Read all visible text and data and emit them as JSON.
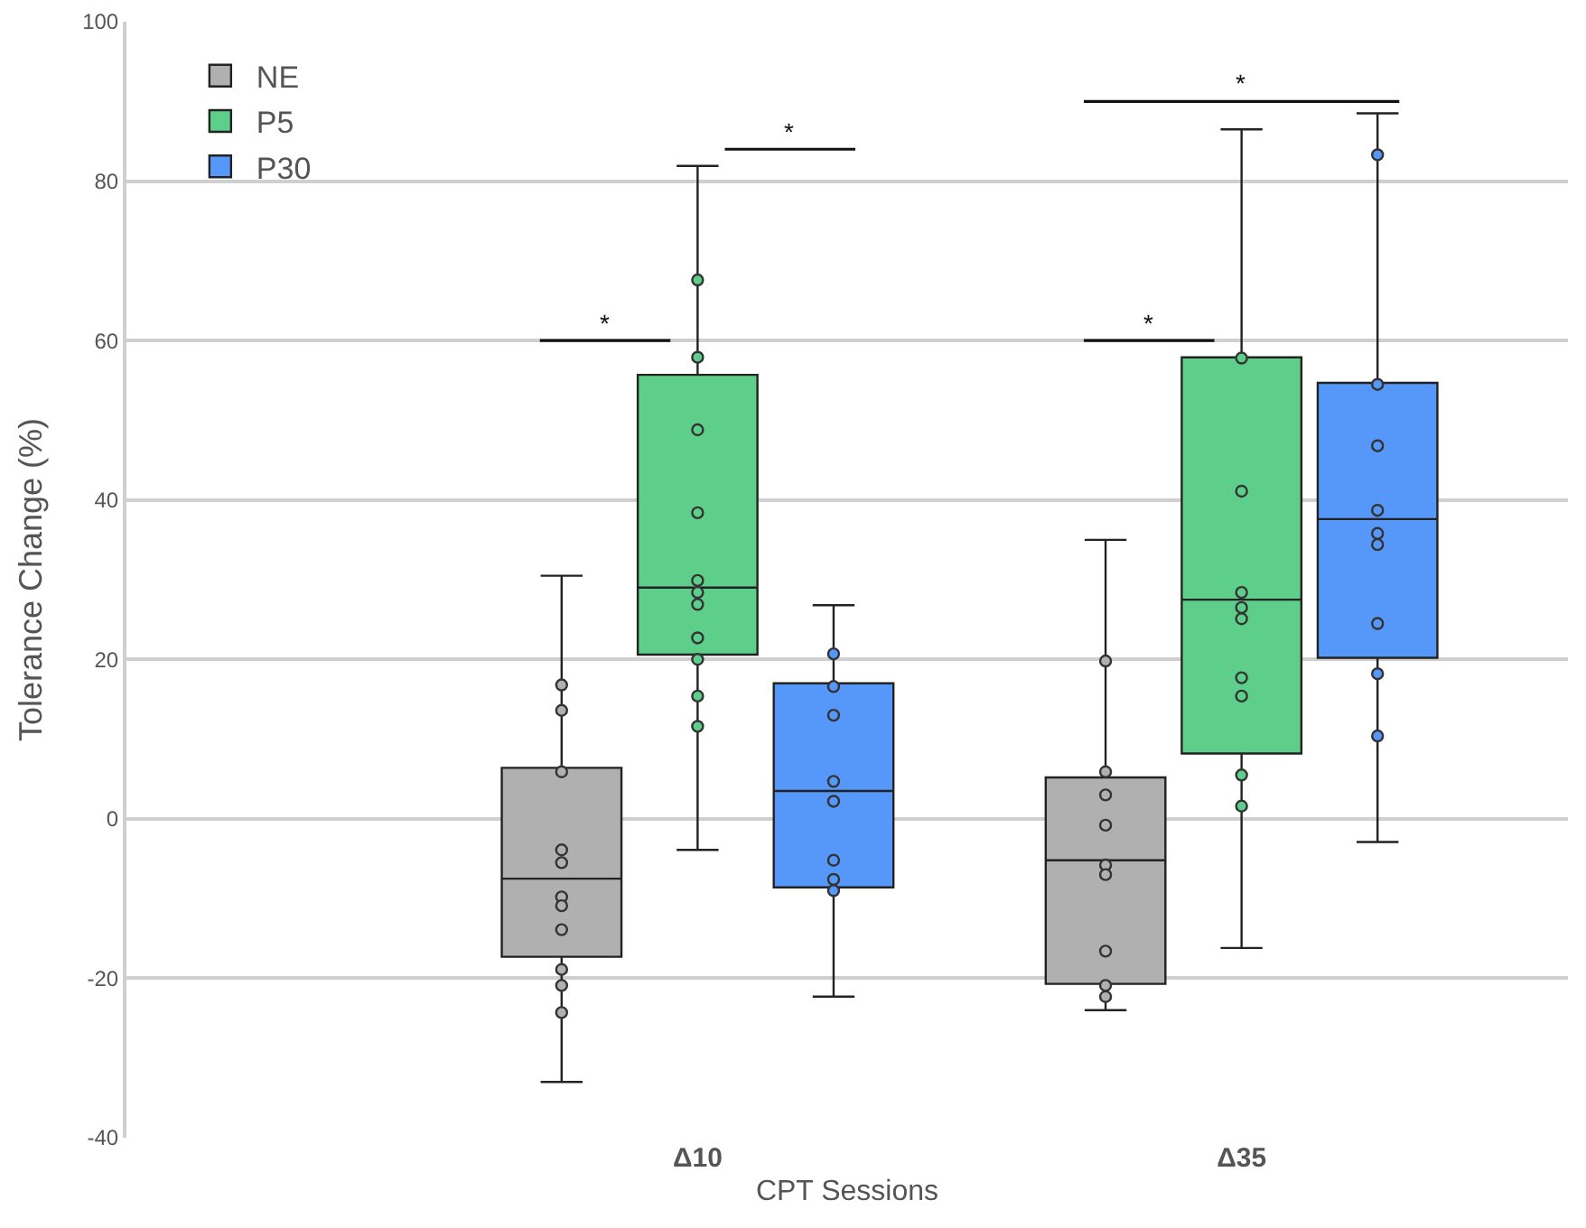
{
  "chart_data": {
    "type": "box",
    "xlabel": "CPT Sessions",
    "ylabel": "Tolerance Change (%)",
    "categories": [
      "Δ10",
      "Δ35"
    ],
    "ylim": [
      -40,
      100
    ],
    "yticks": [
      -40,
      -20,
      0,
      20,
      40,
      60,
      80,
      100
    ],
    "grid": "y",
    "legend": "top left",
    "annotations": [
      "*",
      "*",
      "*",
      "*"
    ],
    "series": [
      {
        "name": "NE",
        "color": "#b0b0b0",
        "boxes": [
          {
            "low": -33,
            "q1": -17.3,
            "median": -7.5,
            "q3": 6.4,
            "high": 30.5
          },
          {
            "low": -24,
            "q1": -20.7,
            "median": -5.2,
            "q3": 5.2,
            "high": 35
          }
        ]
      },
      {
        "name": "P5",
        "color": "#5ecf8a",
        "boxes": [
          {
            "low": -3.9,
            "q1": 20.6,
            "median": 29,
            "q3": 55.7,
            "high": 81.9
          },
          {
            "low": -16.2,
            "q1": 8.2,
            "median": 27.5,
            "q3": 57.9,
            "high": 86.5
          }
        ]
      },
      {
        "name": "P30",
        "color": "#5598fa",
        "boxes": [
          {
            "low": -22.3,
            "q1": -8.6,
            "median": 3.5,
            "q3": 17,
            "high": 26.8
          },
          {
            "low": -2.9,
            "q1": 20.2,
            "median": 37.6,
            "q3": 54.7,
            "high": 88.5
          }
        ]
      },
      {
        "type": "scatter",
        "color": "#b0b0b0",
        "x": [
          "Δ10",
          "Δ10",
          "Δ10",
          "Δ10",
          "Δ10",
          "Δ10",
          "Δ10",
          "Δ10",
          "Δ10",
          "Δ10",
          "Δ10",
          "Δ35",
          "Δ35",
          "Δ35",
          "Δ35",
          "Δ35",
          "Δ35",
          "Δ35",
          "Δ35",
          "Δ35"
        ],
        "values": [
          16.8,
          13.6,
          5.9,
          -3.9,
          -5.5,
          -9.8,
          -10.9,
          -13.9,
          -18.9,
          -20.9,
          -24.3,
          19.8,
          5.9,
          3,
          -0.8,
          -5.8,
          -7,
          -16.6,
          -20.9,
          -22.3
        ]
      },
      {
        "type": "scatter",
        "color": "#5ecf8a",
        "x": [
          "Δ10",
          "Δ10",
          "Δ10",
          "Δ10",
          "Δ10",
          "Δ10",
          "Δ10",
          "Δ10",
          "Δ10",
          "Δ10",
          "Δ10",
          "Δ35",
          "Δ35",
          "Δ35",
          "Δ35",
          "Δ35",
          "Δ35",
          "Δ35",
          "Δ35",
          "Δ35"
        ],
        "values": [
          67.6,
          57.9,
          48.8,
          38.4,
          29.9,
          28.4,
          26.9,
          22.7,
          20,
          15.4,
          11.6,
          57.8,
          41.1,
          28.4,
          26.5,
          25.1,
          17.7,
          15.4,
          5.5,
          1.6
        ]
      },
      {
        "type": "scatter",
        "color": "#5598fa",
        "x": [
          "Δ10",
          "Δ10",
          "Δ10",
          "Δ10",
          "Δ10",
          "Δ10",
          "Δ10",
          "Δ10",
          "Δ35",
          "Δ35",
          "Δ35",
          "Δ35",
          "Δ35",
          "Δ35",
          "Δ35",
          "Δ35",
          "Δ35"
        ],
        "values": [
          20.7,
          16.6,
          13,
          4.7,
          2.2,
          -5.2,
          -7.6,
          -9,
          83.3,
          54.5,
          46.8,
          38.7,
          35.8,
          34.4,
          24.5,
          18.2,
          10.4
        ]
      }
    ],
    "marker": "circle"
  }
}
